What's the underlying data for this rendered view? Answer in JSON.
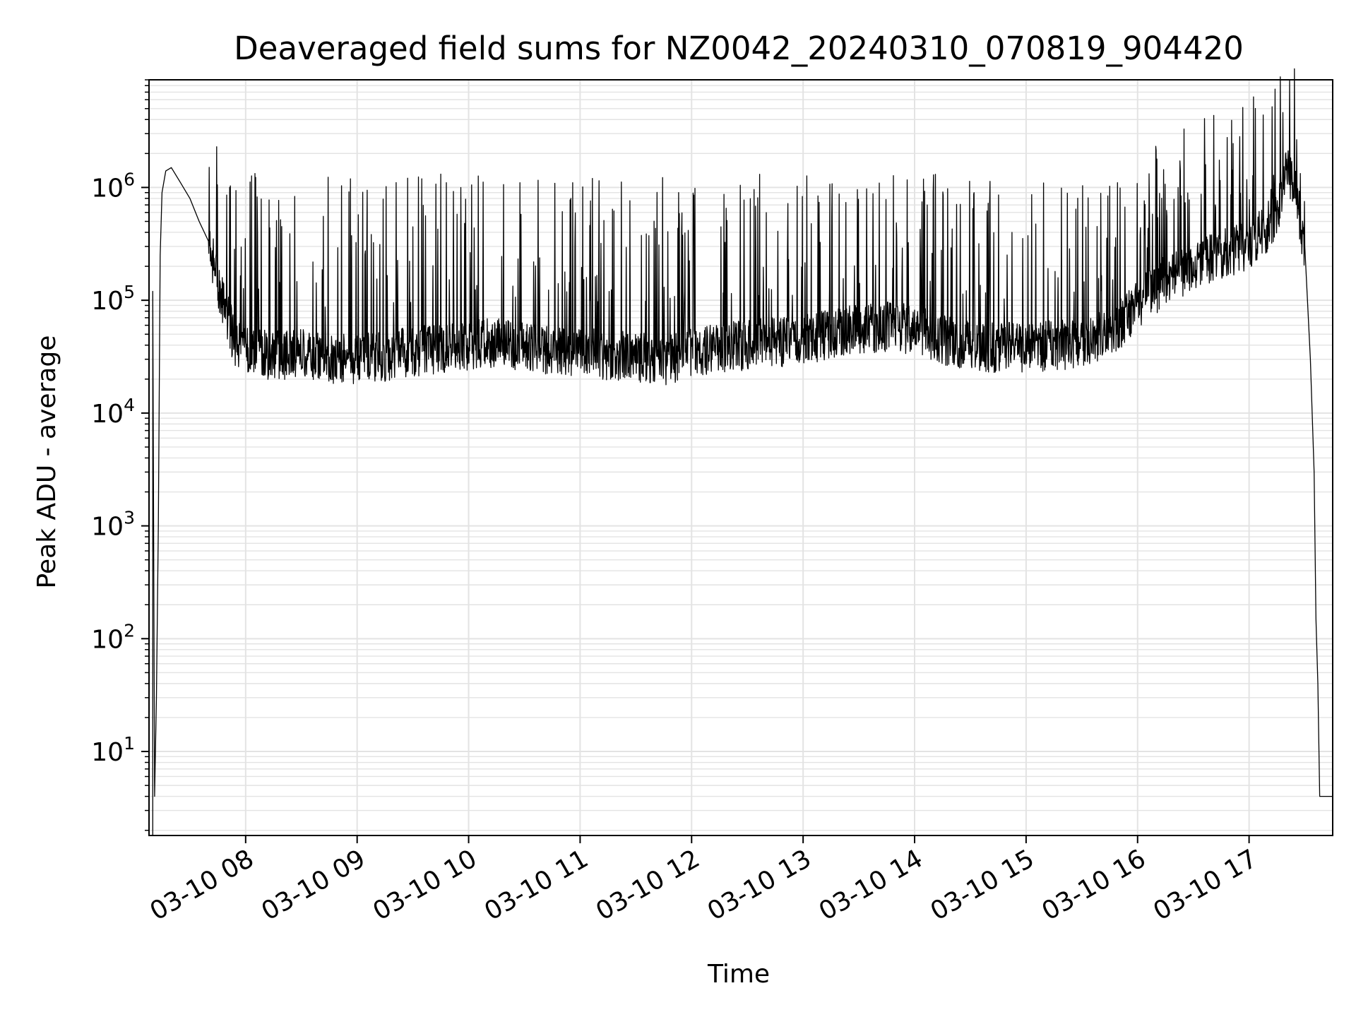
{
  "chart_data": {
    "type": "line",
    "title": "Deaveraged field sums for NZ0042_20240310_070819_904420",
    "xlabel": "Time",
    "ylabel": "Peak ADU - average",
    "x_scale": "time",
    "y_scale": "log",
    "xlim": [
      "2024-03-10 07:08",
      "2024-03-10 17:45"
    ],
    "ylim": [
      1.8,
      9000000
    ],
    "grid": true,
    "line_color": "#000000",
    "x_ticks": [
      {
        "label": "03-10 08",
        "time": "2024-03-10 08:00"
      },
      {
        "label": "03-10 09",
        "time": "2024-03-10 09:00"
      },
      {
        "label": "03-10 10",
        "time": "2024-03-10 10:00"
      },
      {
        "label": "03-10 11",
        "time": "2024-03-10 11:00"
      },
      {
        "label": "03-10 12",
        "time": "2024-03-10 12:00"
      },
      {
        "label": "03-10 13",
        "time": "2024-03-10 13:00"
      },
      {
        "label": "03-10 14",
        "time": "2024-03-10 14:00"
      },
      {
        "label": "03-10 15",
        "time": "2024-03-10 15:00"
      },
      {
        "label": "03-10 16",
        "time": "2024-03-10 16:00"
      },
      {
        "label": "03-10 17",
        "time": "2024-03-10 17:00"
      }
    ],
    "y_ticks": [
      {
        "mantissa": "10",
        "exponent": "1",
        "value": 10
      },
      {
        "mantissa": "10",
        "exponent": "2",
        "value": 100
      },
      {
        "mantissa": "10",
        "exponent": "3",
        "value": 1000
      },
      {
        "mantissa": "10",
        "exponent": "4",
        "value": 10000
      },
      {
        "mantissa": "10",
        "exponent": "5",
        "value": 100000
      },
      {
        "mantissa": "10",
        "exponent": "6",
        "value": 1000000
      }
    ],
    "series": [
      {
        "x": [
          "2024-03-10 07:10",
          "2024-03-10 07:11",
          "2024-03-10 07:12",
          "2024-03-10 07:13",
          "2024-03-10 07:14",
          "2024-03-10 07:15",
          "2024-03-10 07:17",
          "2024-03-10 07:20",
          "2024-03-10 07:25",
          "2024-03-10 07:30",
          "2024-03-10 07:35",
          "2024-03-10 07:40",
          "2024-03-10 07:45",
          "2024-03-10 07:50",
          "2024-03-10 07:55",
          "2024-03-10 08:00",
          "2024-03-10 08:15",
          "2024-03-10 08:30",
          "2024-03-10 08:45",
          "2024-03-10 09:00",
          "2024-03-10 09:15",
          "2024-03-10 09:30",
          "2024-03-10 09:45",
          "2024-03-10 10:00",
          "2024-03-10 10:15",
          "2024-03-10 10:30",
          "2024-03-10 10:45",
          "2024-03-10 11:00",
          "2024-03-10 11:15",
          "2024-03-10 11:30",
          "2024-03-10 11:45",
          "2024-03-10 12:00",
          "2024-03-10 12:15",
          "2024-03-10 12:30",
          "2024-03-10 12:45",
          "2024-03-10 13:00",
          "2024-03-10 13:15",
          "2024-03-10 13:30",
          "2024-03-10 13:45",
          "2024-03-10 14:00",
          "2024-03-10 14:15",
          "2024-03-10 14:30",
          "2024-03-10 14:45",
          "2024-03-10 15:00",
          "2024-03-10 15:15",
          "2024-03-10 15:30",
          "2024-03-10 15:45",
          "2024-03-10 16:00",
          "2024-03-10 16:15",
          "2024-03-10 16:30",
          "2024-03-10 16:45",
          "2024-03-10 17:00",
          "2024-03-10 17:10",
          "2024-03-10 17:15",
          "2024-03-10 17:20",
          "2024-03-10 17:25",
          "2024-03-10 17:30",
          "2024-03-10 17:33",
          "2024-03-10 17:35",
          "2024-03-10 17:36",
          "2024-03-10 17:37",
          "2024-03-10 17:38",
          "2024-03-10 17:40",
          "2024-03-10 17:42",
          "2024-03-10 17:45"
        ],
        "y": [
          120000,
          4,
          30,
          1000,
          250000,
          900000,
          1400000,
          1500000,
          1100000,
          800000,
          500000,
          300000,
          150000,
          70000,
          40000,
          35000,
          32000,
          33000,
          30000,
          30000,
          32000,
          35000,
          38000,
          40000,
          42000,
          38000,
          37000,
          35000,
          33000,
          32000,
          28000,
          35000,
          38000,
          40000,
          42000,
          45000,
          50000,
          55000,
          58000,
          55000,
          45000,
          40000,
          38000,
          38000,
          40000,
          42000,
          50000,
          90000,
          150000,
          200000,
          250000,
          300000,
          450000,
          600000,
          1500000,
          900000,
          300000,
          30000,
          3000,
          150,
          40,
          4,
          4,
          4,
          4
        ]
      }
    ],
    "spikes": {
      "description_free": true,
      "typical_peak": 1000000,
      "noise_floor_min": 20000
    }
  }
}
